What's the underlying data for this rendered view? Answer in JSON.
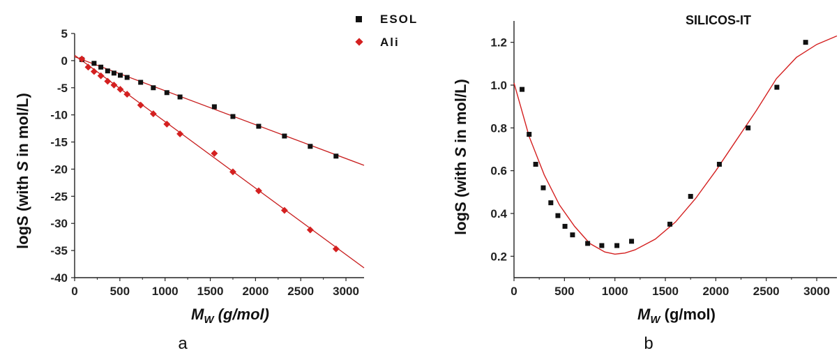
{
  "chart_data": [
    {
      "type": "scatter",
      "panel_label": "a",
      "xlabel_main": "M",
      "xlabel_sub": "W",
      "xlabel_unit": " (g/mol)",
      "ylabel_pre": "logS (with ",
      "ylabel_var": "S",
      "ylabel_post": " in mol/L)",
      "xlim": [
        0,
        3200
      ],
      "ylim": [
        -40,
        5
      ],
      "xticks": [
        0,
        500,
        1000,
        1500,
        2000,
        2500,
        3000
      ],
      "yticks": [
        5,
        0,
        -5,
        -10,
        -15,
        -20,
        -25,
        -30,
        -35,
        -40
      ],
      "legend_position": "top-right",
      "series": [
        {
          "name": "ESOL",
          "marker": "square",
          "color": "#111111",
          "x": [
            80,
            215,
            290,
            365,
            435,
            505,
            580,
            730,
            870,
            1020,
            1165,
            1545,
            1750,
            2035,
            2320,
            2605,
            2890
          ],
          "y": [
            0.2,
            -0.5,
            -1.2,
            -1.9,
            -2.3,
            -2.7,
            -3.1,
            -4.0,
            -5.0,
            -5.9,
            -6.7,
            -8.5,
            -10.3,
            -12.1,
            -13.9,
            -15.8,
            -17.6
          ],
          "fit": {
            "x0": 0,
            "y0": 0.7,
            "x1": 3200,
            "y1": -19.3
          }
        },
        {
          "name": "Ali",
          "marker": "diamond",
          "color": "#d42020",
          "x": [
            80,
            150,
            215,
            290,
            365,
            435,
            505,
            580,
            730,
            870,
            1020,
            1165,
            1545,
            1750,
            2035,
            2320,
            2605,
            2890
          ],
          "y": [
            0.3,
            -1.2,
            -2.0,
            -2.8,
            -3.8,
            -4.5,
            -5.3,
            -6.2,
            -8.2,
            -9.8,
            -11.7,
            -13.5,
            -17.1,
            -20.5,
            -24.0,
            -27.6,
            -31.2,
            -34.7
          ],
          "fit": {
            "x0": 0,
            "y0": 1.0,
            "x1": 3200,
            "y1": -38.2
          }
        }
      ]
    },
    {
      "type": "scatter",
      "panel_label": "b",
      "title": "SILICOS-IT",
      "xlabel_main": "M",
      "xlabel_sub": "W",
      "xlabel_unit": " (g/mol)",
      "ylabel_pre": "logS (with ",
      "ylabel_var": "S",
      "ylabel_post": " in mol/L)",
      "xlim": [
        0,
        3200
      ],
      "ylim": [
        0.1,
        1.3
      ],
      "xticks": [
        0,
        500,
        1000,
        1500,
        2000,
        2500,
        3000
      ],
      "yticks": [
        0.2,
        0.4,
        0.6,
        0.8,
        1.0,
        1.2
      ],
      "ytick_labels": [
        "0.2",
        "0.4",
        "0.6",
        "0.8",
        "1.0",
        "1.2"
      ],
      "series": [
        {
          "marker": "square",
          "color": "#111111",
          "x": [
            80,
            150,
            215,
            290,
            365,
            435,
            505,
            580,
            730,
            870,
            1020,
            1165,
            1545,
            1750,
            2035,
            2320,
            2605,
            2890
          ],
          "y": [
            0.98,
            0.77,
            0.63,
            0.52,
            0.45,
            0.39,
            0.34,
            0.3,
            0.26,
            0.25,
            0.25,
            0.27,
            0.35,
            0.48,
            0.63,
            0.8,
            0.99,
            1.2
          ]
        }
      ],
      "fit_line": {
        "color": "#d42020",
        "x": [
          0,
          150,
          300,
          450,
          600,
          750,
          900,
          1000,
          1100,
          1200,
          1400,
          1600,
          1800,
          2000,
          2200,
          2400,
          2600,
          2800,
          3000,
          3200
        ],
        "y": [
          1.01,
          0.76,
          0.58,
          0.44,
          0.34,
          0.26,
          0.22,
          0.21,
          0.215,
          0.23,
          0.28,
          0.36,
          0.47,
          0.6,
          0.74,
          0.88,
          1.03,
          1.13,
          1.19,
          1.23
        ]
      }
    }
  ]
}
